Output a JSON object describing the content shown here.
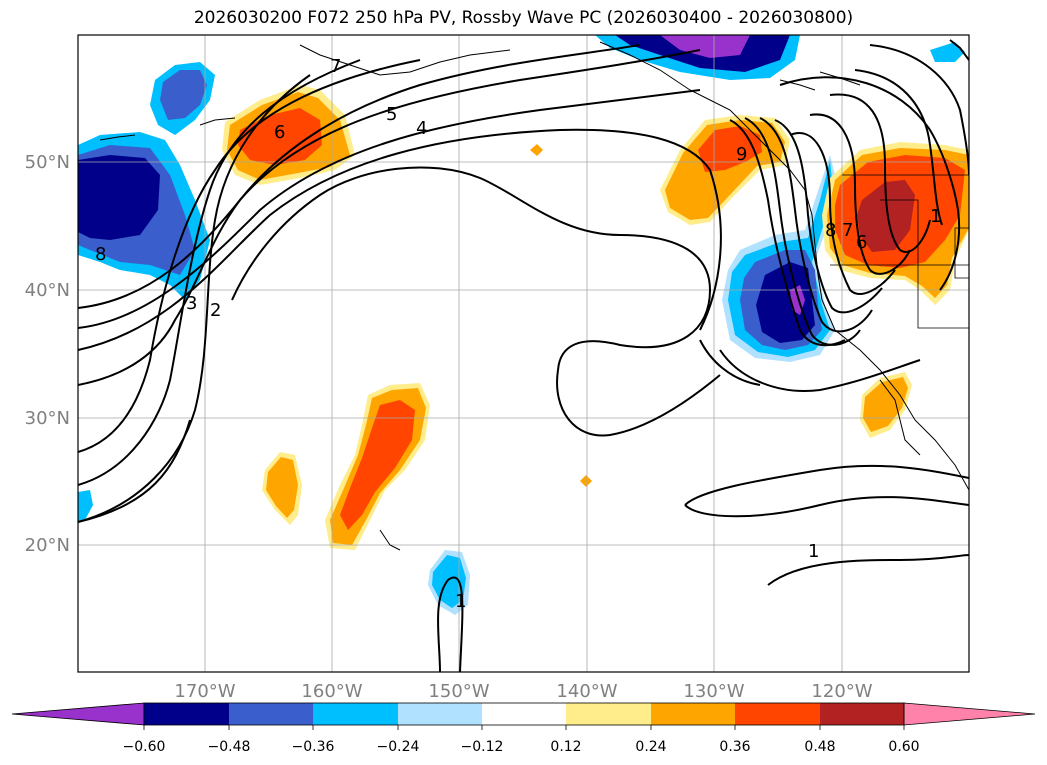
{
  "title": "2026030200 F072 250 hPa PV, Rossby Wave PC (2026030400 - 2026030800)",
  "map": {
    "lat_labels": [
      "50°N",
      "40°N",
      "30°N",
      "20°N"
    ],
    "lon_labels": [
      "170°W",
      "160°W",
      "150°W",
      "140°W",
      "130°W",
      "120°W"
    ],
    "lon_range": [
      -180,
      -110
    ],
    "lat_range": [
      10,
      60
    ],
    "contour_labels": [
      "7",
      "6",
      "5",
      "4",
      "3",
      "2",
      "8",
      "1",
      "1",
      "8",
      "7",
      "6",
      "9",
      "1"
    ]
  },
  "colorbar": {
    "ticks": [
      "−0.60",
      "−0.48",
      "−0.36",
      "−0.24",
      "−0.12",
      "0.12",
      "0.24",
      "0.36",
      "0.48",
      "0.60"
    ],
    "colors": [
      "#9932cc",
      "#00008b",
      "#3a5fcd",
      "#00bfff",
      "#b0e2ff",
      "#ffffff",
      "#ffec8b",
      "#ffa500",
      "#ff4500",
      "#b22222",
      "#ff82ab"
    ]
  }
}
